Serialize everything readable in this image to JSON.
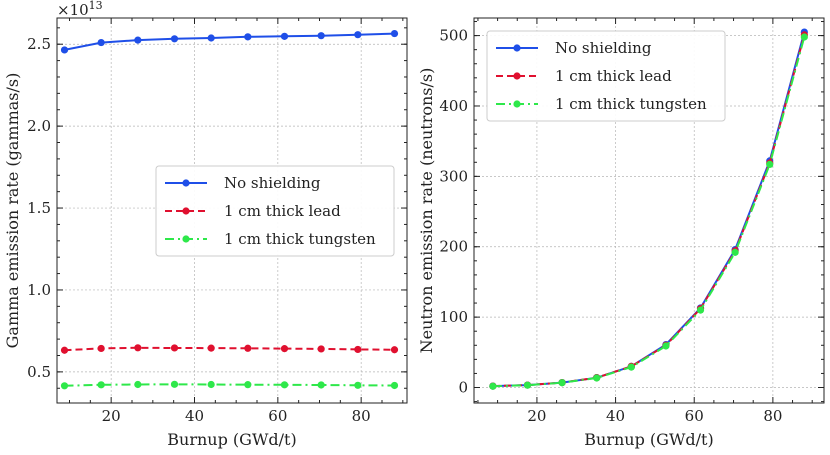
{
  "chart_data": [
    {
      "type": "line",
      "xlabel": "Burnup (GWd/t)",
      "ylabel": "Gamma emission rate (gammas/s)",
      "offset_label": "×10",
      "offset_exponent": "13",
      "xlim": [
        7,
        91
      ],
      "ylim": [
        0.31,
        2.66
      ],
      "xticks": [
        20,
        40,
        60,
        80
      ],
      "xtick_labels": [
        "20",
        "40",
        "60",
        "80"
      ],
      "yticks": [
        0.5,
        1.0,
        1.5,
        2.0,
        2.5
      ],
      "ytick_labels": [
        "0.5",
        "1.0",
        "1.5",
        "2.0",
        "2.5"
      ],
      "x": [
        8.8,
        17.6,
        26.4,
        35.2,
        44.0,
        52.8,
        61.6,
        70.4,
        79.2,
        88.0
      ],
      "series": [
        {
          "name": "No shielding",
          "color": "#1f4fe8",
          "dash": "solid",
          "values": [
            2.465,
            2.51,
            2.525,
            2.533,
            2.538,
            2.545,
            2.548,
            2.552,
            2.558,
            2.565
          ]
        },
        {
          "name": "1 cm thick lead",
          "color": "#e0102f",
          "dash": "dashed",
          "values": [
            0.632,
            0.643,
            0.647,
            0.646,
            0.645,
            0.644,
            0.642,
            0.64,
            0.637,
            0.635
          ]
        },
        {
          "name": "1 cm thick tungsten",
          "color": "#2ee84a",
          "dash": "dashdot",
          "values": [
            0.415,
            0.421,
            0.423,
            0.424,
            0.423,
            0.422,
            0.421,
            0.42,
            0.418,
            0.417
          ]
        }
      ],
      "legend": "center-right"
    },
    {
      "type": "line",
      "xlabel": "Burnup (GWd/t)",
      "ylabel": "Neutron emission rate (neutrons/s)",
      "xlim": [
        4,
        93
      ],
      "ylim": [
        -22,
        525
      ],
      "xticks": [
        20,
        40,
        60,
        80
      ],
      "xtick_labels": [
        "20",
        "40",
        "60",
        "80"
      ],
      "yticks": [
        0,
        100,
        200,
        300,
        400,
        500
      ],
      "ytick_labels": [
        "0",
        "100",
        "200",
        "300",
        "400",
        "500"
      ],
      "x": [
        8.8,
        17.6,
        26.4,
        35.2,
        44.0,
        52.8,
        61.6,
        70.4,
        79.2,
        88.0
      ],
      "series": [
        {
          "name": "No shielding",
          "color": "#1f4fe8",
          "dash": "solid",
          "values": [
            2,
            3.5,
            7,
            14,
            30,
            61,
            113,
            196,
            322,
            505
          ]
        },
        {
          "name": "1 cm thick lead",
          "color": "#e0102f",
          "dash": "dashed",
          "values": [
            2,
            3.5,
            7,
            14,
            30,
            60,
            112,
            194,
            319,
            501
          ]
        },
        {
          "name": "1 cm thick tungsten",
          "color": "#2ee84a",
          "dash": "dashdot",
          "values": [
            1.8,
            3.3,
            6.8,
            13.5,
            29,
            59,
            110,
            192,
            317,
            498
          ]
        }
      ],
      "legend": "top-left"
    }
  ]
}
